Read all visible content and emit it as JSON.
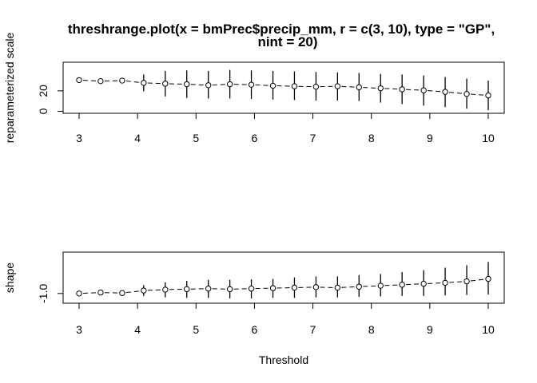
{
  "figure": {
    "title_line1": "threshrange.plot(x = bmPrec$precip_mm, r = c(3, 10), type = \"GP\",",
    "title_line2": "nint = 20)",
    "xlabel": "Threshold"
  },
  "chart_data": [
    {
      "type": "scatter",
      "panel": "top",
      "ylabel": "reparameterized scale",
      "xlim": [
        3,
        10
      ],
      "ylim": [
        -2,
        48
      ],
      "x_ticks": [
        3,
        4,
        5,
        6,
        7,
        8,
        9,
        10
      ],
      "y_ticks": [
        0,
        20
      ],
      "x": [
        3.0,
        3.368,
        3.737,
        4.105,
        4.474,
        4.842,
        5.211,
        5.579,
        5.947,
        6.316,
        6.684,
        7.053,
        7.421,
        7.789,
        8.158,
        8.526,
        8.895,
        9.263,
        9.632,
        10.0
      ],
      "y": [
        30.5,
        29.5,
        30.0,
        27.8,
        27.0,
        26.5,
        25.5,
        26.5,
        26.0,
        25.0,
        24.5,
        24.0,
        24.5,
        23.5,
        22.5,
        21.5,
        20.5,
        19.0,
        17.0,
        15.5
      ],
      "lower": [
        30.5,
        29.5,
        30.0,
        19.5,
        14.5,
        13.0,
        12.5,
        12.5,
        12.0,
        11.5,
        11.0,
        10.5,
        10.5,
        10.0,
        8.5,
        7.0,
        5.5,
        4.0,
        2.5,
        1.0
      ],
      "upper": [
        30.5,
        29.5,
        30.0,
        36.0,
        39.5,
        40.0,
        39.5,
        40.5,
        40.0,
        39.5,
        39.0,
        38.5,
        38.0,
        37.5,
        36.5,
        36.0,
        35.0,
        33.5,
        32.0,
        30.0
      ]
    },
    {
      "type": "scatter",
      "panel": "bottom",
      "ylabel": "shape",
      "xlim": [
        3,
        10
      ],
      "ylim": [
        -1.2,
        -0.15
      ],
      "x_ticks": [
        3,
        4,
        5,
        6,
        7,
        8,
        9,
        10
      ],
      "y_ticks": [
        -1.0
      ],
      "x": [
        3.0,
        3.368,
        3.737,
        4.105,
        4.474,
        4.842,
        5.211,
        5.579,
        5.947,
        6.316,
        6.684,
        7.053,
        7.421,
        7.789,
        8.158,
        8.526,
        8.895,
        9.263,
        9.632,
        10.0
      ],
      "y": [
        -1.0,
        -0.98,
        -0.99,
        -0.94,
        -0.92,
        -0.91,
        -0.9,
        -0.91,
        -0.9,
        -0.89,
        -0.88,
        -0.87,
        -0.88,
        -0.86,
        -0.84,
        -0.82,
        -0.8,
        -0.78,
        -0.75,
        -0.7
      ],
      "lower": [
        -1.0,
        -0.98,
        -0.99,
        -1.05,
        -1.08,
        -1.09,
        -1.09,
        -1.1,
        -1.1,
        -1.09,
        -1.09,
        -1.08,
        -1.08,
        -1.07,
        -1.06,
        -1.05,
        -1.05,
        -1.04,
        -1.03,
        -1.02
      ],
      "upper": [
        -1.0,
        -0.98,
        -0.99,
        -0.83,
        -0.77,
        -0.74,
        -0.72,
        -0.72,
        -0.71,
        -0.7,
        -0.67,
        -0.65,
        -0.65,
        -0.62,
        -0.6,
        -0.56,
        -0.52,
        -0.47,
        -0.42,
        -0.35
      ]
    }
  ]
}
